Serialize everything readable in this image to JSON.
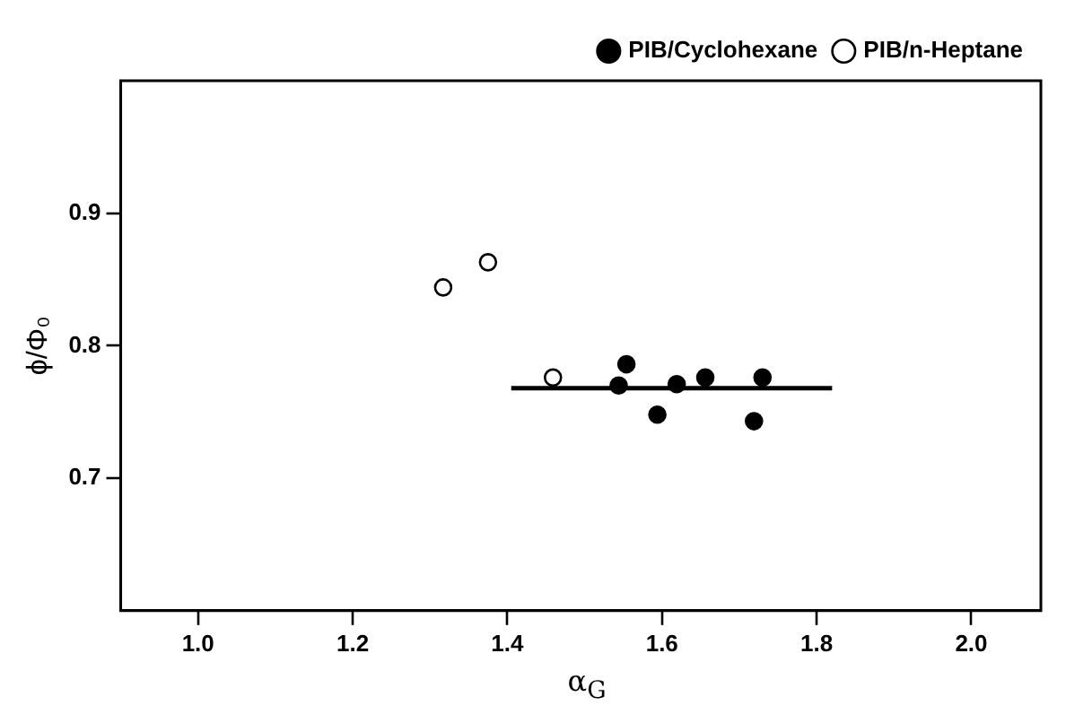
{
  "chart_data": {
    "type": "scatter",
    "xlabel": "α$_{G}$",
    "ylabel": "ϕ/Φ₀",
    "series": [
      {
        "name": "PIB/Cyclohexane",
        "color": "#000000",
        "marker": "circle",
        "x": [
          1.544,
          1.554,
          1.594,
          1.619,
          1.656,
          1.719,
          1.73
        ],
        "values": [
          0.77,
          0.786,
          0.748,
          0.771,
          0.776,
          0.743,
          0.776
        ]
      },
      {
        "name": "PIB/n-Heptane",
        "color": "#ffffff",
        "marker": "circle",
        "x": [
          1.317,
          1.375,
          1.459
        ],
        "values": [
          0.844,
          0.863,
          0.776
        ]
      },
      {
        "type": "line",
        "color": "#000000",
        "marker": "none",
        "x": [
          1.405,
          1.82
        ],
        "values": [
          0.768,
          0.768
        ]
      }
    ],
    "xlim": [
      0.9,
      2.09
    ],
    "ylim": [
      0.6,
      1.0
    ],
    "xticks": [
      {
        "value": 1,
        "label": "1.0"
      },
      1.2,
      1.4,
      1.6,
      1.8,
      {
        "value": 2,
        "label": "2.0"
      }
    ],
    "yticks": [
      0.7,
      0.8,
      0.9
    ],
    "grid": false,
    "legend": "top right"
  }
}
